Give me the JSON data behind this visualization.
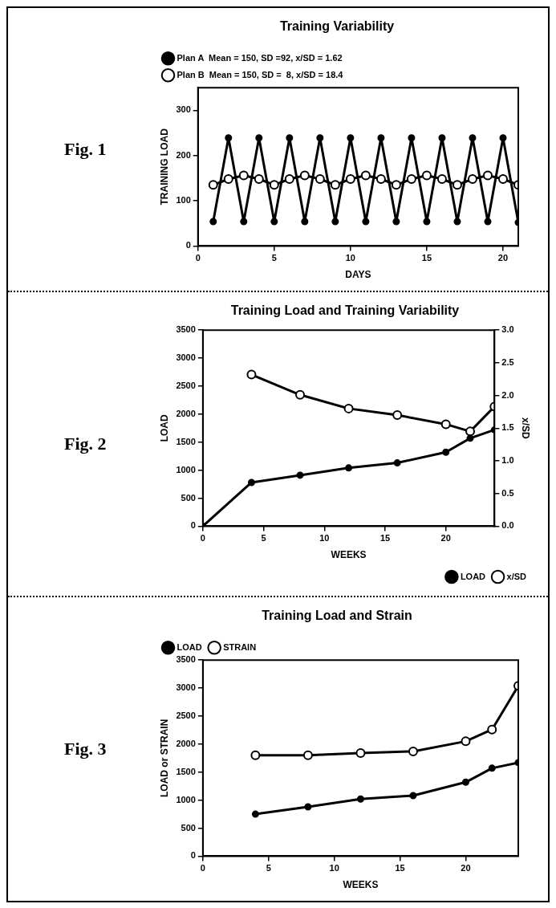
{
  "chart_data": [
    {
      "type": "line",
      "title": "Training Variability",
      "xlabel": "DAYS",
      "ylabel": "TRAINING LOAD",
      "annotations": [
        "Fig. 1"
      ],
      "xlim": [
        0,
        21
      ],
      "xticks": [
        0,
        5,
        10,
        15,
        20
      ],
      "ylim": [
        0,
        350
      ],
      "yticks": [
        0,
        100,
        200,
        300
      ],
      "legend": "top left",
      "grid": false,
      "marker": "circle",
      "line_style": "solid",
      "x": [
        1,
        2,
        3,
        4,
        5,
        6,
        7,
        8,
        9,
        10,
        11,
        12,
        13,
        14,
        15,
        16,
        17,
        18,
        19,
        20,
        21
      ],
      "series": [
        {
          "name": "Plan A  Mean = 150, SD =92, x/SD = 1.62",
          "color": "#000000",
          "values": [
            54,
            239,
            54,
            239,
            54,
            239,
            54,
            239,
            54,
            239,
            54,
            239,
            54,
            239,
            54,
            239,
            54,
            239,
            54,
            239,
            52
          ]
        },
        {
          "name": "Plan B  Mean = 150, SD =  8, x/SD = 18.4",
          "color": "#000000",
          "values": [
            135,
            148,
            156,
            148,
            135,
            148,
            156,
            148,
            135,
            148,
            156,
            148,
            135,
            148,
            156,
            148,
            135,
            148,
            156,
            148,
            135
          ]
        }
      ]
    },
    {
      "type": "line",
      "title": "Training Load and Training Variability",
      "xlabel": "WEEKS",
      "ylabel": "LOAD",
      "y2label": "x/SD",
      "annotations": [
        "Fig. 2"
      ],
      "xlim": [
        0,
        24
      ],
      "xticks": [
        0,
        5,
        10,
        15,
        20
      ],
      "ylim": [
        0,
        3500
      ],
      "yticks": [
        0,
        500,
        1000,
        1500,
        2000,
        2500,
        3000,
        3500
      ],
      "y2lim": [
        0,
        3
      ],
      "y2ticks": [
        {
          "value": 0,
          "label": "0.0"
        },
        {
          "value": 0.5,
          "label": "0.5"
        },
        {
          "value": 1,
          "label": "1.0"
        },
        {
          "value": 1.5,
          "label": "1.5"
        },
        {
          "value": 2,
          "label": "2.0"
        },
        {
          "value": 2.5,
          "label": "2.5"
        },
        {
          "value": 3,
          "label": "3.0"
        }
      ],
      "legend": "bottom right",
      "grid": false,
      "marker": "circle",
      "line_style": "solid",
      "series": [
        {
          "name": "LOAD",
          "color": "#000000",
          "x": [
            0,
            4,
            8,
            12,
            16,
            20,
            22,
            24
          ],
          "values": [
            0,
            780,
            910,
            1040,
            1130,
            1320,
            1570,
            1720
          ]
        },
        {
          "name": "x/SD",
          "color": "#000000",
          "axis": "y2",
          "x": [
            4,
            8,
            12,
            16,
            20,
            22,
            24
          ],
          "values": [
            2.32,
            2.01,
            1.8,
            1.7,
            1.56,
            1.45,
            1.83
          ]
        }
      ]
    },
    {
      "type": "line",
      "title": "Training Load and Strain",
      "xlabel": "WEEKS",
      "ylabel": "LOAD or STRAIN",
      "annotations": [
        "Fig. 3"
      ],
      "xlim": [
        0,
        24
      ],
      "xticks": [
        0,
        5,
        10,
        15,
        20
      ],
      "ylim": [
        0,
        3500
      ],
      "yticks": [
        0,
        500,
        1000,
        1500,
        2000,
        2500,
        3000,
        3500
      ],
      "legend": "top left",
      "grid": false,
      "marker": "circle",
      "line_style": "solid",
      "x": [
        4,
        8,
        12,
        16,
        20,
        22,
        24
      ],
      "series": [
        {
          "name": "LOAD",
          "color": "#000000",
          "values": [
            750,
            880,
            1020,
            1080,
            1320,
            1570,
            1670
          ]
        },
        {
          "name": "STRAIN",
          "color": "#000000",
          "values": [
            1800,
            1800,
            1840,
            1870,
            2050,
            2260,
            3040
          ]
        }
      ]
    }
  ]
}
